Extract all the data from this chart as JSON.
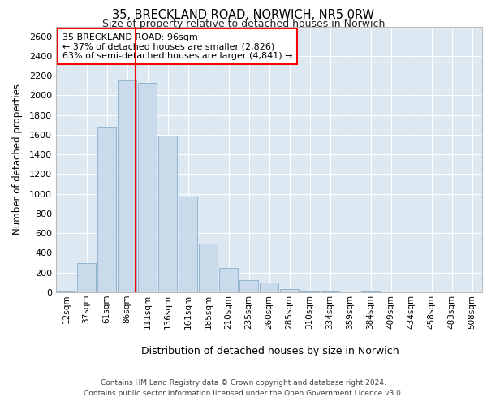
{
  "title": "35, BRECKLAND ROAD, NORWICH, NR5 0RW",
  "subtitle": "Size of property relative to detached houses in Norwich",
  "xlabel": "Distribution of detached houses by size in Norwich",
  "ylabel": "Number of detached properties",
  "bar_color": "#c9daea",
  "bar_edgecolor": "#8aaec8",
  "background_color": "#dce8f2",
  "vline_color": "red",
  "annotation_text": "35 BRECKLAND ROAD: 96sqm\n← 37% of detached houses are smaller (2,826)\n63% of semi-detached houses are larger (4,841) →",
  "annotation_box_color": "white",
  "annotation_box_edgecolor": "red",
  "footer_line1": "Contains HM Land Registry data © Crown copyright and database right 2024.",
  "footer_line2": "Contains public sector information licensed under the Open Government Licence v3.0.",
  "categories": [
    "12sqm",
    "37sqm",
    "61sqm",
    "86sqm",
    "111sqm",
    "136sqm",
    "161sqm",
    "185sqm",
    "210sqm",
    "235sqm",
    "260sqm",
    "285sqm",
    "310sqm",
    "334sqm",
    "359sqm",
    "384sqm",
    "409sqm",
    "434sqm",
    "458sqm",
    "483sqm",
    "508sqm"
  ],
  "values": [
    18,
    295,
    1670,
    2155,
    2130,
    1595,
    970,
    495,
    245,
    125,
    100,
    35,
    20,
    15,
    5,
    18,
    5,
    5,
    5,
    5,
    5
  ],
  "ylim": [
    0,
    2700
  ],
  "yticks": [
    0,
    200,
    400,
    600,
    800,
    1000,
    1200,
    1400,
    1600,
    1800,
    2000,
    2200,
    2400,
    2600
  ],
  "figsize": [
    6.0,
    5.0
  ],
  "dpi": 100
}
